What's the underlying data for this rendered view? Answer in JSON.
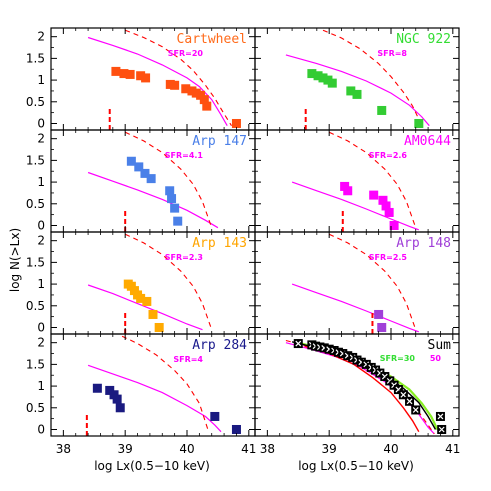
{
  "figure": {
    "ylabel": "log N(>Lx)",
    "xlabel": "log Lx(0.5−10 keV)",
    "x_ticks": [
      "38",
      "39",
      "40",
      "41"
    ],
    "y_ticks": [
      "0",
      "0.5",
      "1",
      "1.5",
      "2"
    ]
  },
  "colors": {
    "model": "#ff00ff",
    "limit": "#ff0000",
    "frame": "#000000",
    "sum_fit_green": "#88ee22",
    "sum_fit_black": "#000000"
  },
  "chart_data": [
    {
      "type": "scatter",
      "title": "Cartwheel",
      "sfr_label": "SFR=20",
      "title_color": "#ff6a1a",
      "sfr_color": "#ff00ff",
      "marker_color": "#ff5010",
      "xlim": [
        37.8,
        41.1
      ],
      "ylim": [
        -0.15,
        2.2
      ],
      "x": [
        38.85,
        38.98,
        39.08,
        39.25,
        39.33,
        39.73,
        39.8,
        39.98,
        40.08,
        40.15,
        40.22,
        40.28,
        40.32,
        40.8
      ],
      "y": [
        1.2,
        1.15,
        1.13,
        1.1,
        1.05,
        0.9,
        0.88,
        0.8,
        0.75,
        0.7,
        0.65,
        0.55,
        0.4,
        0.0
      ],
      "completeness_limit": 38.75,
      "model_curve": {
        "x": [
          38.4,
          38.8,
          39.2,
          39.6,
          40.0,
          40.2,
          40.4,
          40.55,
          40.65
        ],
        "y": [
          1.98,
          1.8,
          1.6,
          1.35,
          1.05,
          0.85,
          0.55,
          0.2,
          -0.05
        ]
      },
      "upper_curve": {
        "x": [
          39.0,
          39.3,
          39.6,
          39.9,
          40.1,
          40.3,
          40.45,
          40.6,
          40.72
        ],
        "y": [
          2.15,
          1.98,
          1.77,
          1.48,
          1.22,
          0.88,
          0.58,
          0.22,
          -0.05
        ]
      }
    },
    {
      "type": "scatter",
      "title": "NGC 922",
      "sfr_label": "SFR=8",
      "title_color": "#33dd33",
      "sfr_color": "#ff00ff",
      "marker_color": "#33cc33",
      "xlim": [
        37.8,
        41.1
      ],
      "ylim": [
        -0.15,
        2.2
      ],
      "x": [
        38.72,
        38.82,
        38.9,
        38.98,
        39.05,
        39.35,
        39.45,
        39.85,
        40.45
      ],
      "y": [
        1.15,
        1.1,
        1.05,
        1.0,
        0.93,
        0.75,
        0.67,
        0.3,
        0.0
      ],
      "completeness_limit": 38.62,
      "model_curve": {
        "x": [
          38.3,
          38.8,
          39.2,
          39.6,
          40.0,
          40.3,
          40.5,
          40.62
        ],
        "y": [
          1.58,
          1.38,
          1.2,
          0.98,
          0.7,
          0.42,
          0.15,
          -0.05
        ]
      },
      "upper_curve": {
        "x": [
          38.9,
          39.2,
          39.5,
          39.8,
          40.0,
          40.2,
          40.35,
          40.5
        ],
        "y": [
          2.15,
          1.97,
          1.72,
          1.38,
          1.08,
          0.72,
          0.4,
          -0.05
        ]
      }
    },
    {
      "type": "scatter",
      "title": "Arp 147",
      "sfr_label": "SFR=4.1",
      "title_color": "#4a7fe8",
      "sfr_color": "#ff00ff",
      "marker_color": "#4a80e8",
      "xlim": [
        37.8,
        41.1
      ],
      "ylim": [
        -0.15,
        2.2
      ],
      "x": [
        39.1,
        39.22,
        39.32,
        39.42,
        39.72,
        39.75,
        39.8,
        39.85
      ],
      "y": [
        1.48,
        1.35,
        1.2,
        1.08,
        0.8,
        0.62,
        0.4,
        0.1
      ],
      "completeness_limit": 39.0,
      "model_curve": {
        "x": [
          38.4,
          38.8,
          39.2,
          39.6,
          40.0,
          40.3,
          40.5
        ],
        "y": [
          1.22,
          1.02,
          0.82,
          0.6,
          0.35,
          0.12,
          -0.05
        ]
      },
      "upper_curve": {
        "x": [
          39.0,
          39.3,
          39.6,
          39.9,
          40.1,
          40.25,
          40.4
        ],
        "y": [
          2.15,
          1.95,
          1.68,
          1.3,
          0.95,
          0.55,
          -0.05
        ]
      }
    },
    {
      "type": "scatter",
      "title": "AM0644",
      "sfr_label": "SFR=2.6",
      "title_color": "#ff00ff",
      "sfr_color": "#ff00ff",
      "marker_color": "#ff00ff",
      "xlim": [
        37.8,
        41.1
      ],
      "ylim": [
        -0.15,
        2.2
      ],
      "x": [
        39.25,
        39.3,
        39.72,
        39.87,
        39.92,
        39.97,
        40.05
      ],
      "y": [
        0.9,
        0.8,
        0.7,
        0.58,
        0.45,
        0.3,
        0.0
      ],
      "completeness_limit": 39.22,
      "model_curve": {
        "x": [
          38.4,
          38.8,
          39.2,
          39.6,
          40.0,
          40.3,
          40.45
        ],
        "y": [
          1.0,
          0.8,
          0.6,
          0.38,
          0.15,
          -0.02,
          -0.1
        ]
      },
      "upper_curve": {
        "x": [
          39.0,
          39.3,
          39.6,
          39.9,
          40.1,
          40.25,
          40.4
        ],
        "y": [
          2.15,
          1.95,
          1.68,
          1.3,
          0.95,
          0.55,
          -0.05
        ]
      }
    },
    {
      "type": "scatter",
      "title": "Arp 143",
      "sfr_label": "SFR=2.3",
      "title_color": "#ffa500",
      "sfr_color": "#ff00ff",
      "marker_color": "#ffaa00",
      "xlim": [
        37.8,
        41.1
      ],
      "ylim": [
        -0.15,
        2.2
      ],
      "x": [
        39.05,
        39.1,
        39.15,
        39.2,
        39.25,
        39.35,
        39.45,
        39.55
      ],
      "y": [
        1.0,
        0.95,
        0.85,
        0.75,
        0.67,
        0.6,
        0.3,
        0.0
      ],
      "completeness_limit": 39.0,
      "model_curve": {
        "x": [
          38.4,
          38.8,
          39.2,
          39.6,
          40.0,
          40.25
        ],
        "y": [
          0.98,
          0.78,
          0.55,
          0.32,
          0.08,
          -0.05
        ]
      },
      "upper_curve": {
        "x": [
          39.0,
          39.3,
          39.6,
          39.9,
          40.1,
          40.25,
          40.4
        ],
        "y": [
          2.15,
          1.95,
          1.68,
          1.3,
          0.95,
          0.55,
          -0.05
        ]
      }
    },
    {
      "type": "scatter",
      "title": "Arp 148",
      "sfr_label": "SFR=2.5",
      "title_color": "#a040d8",
      "sfr_color": "#ff00ff",
      "marker_color": "#a040d8",
      "xlim": [
        37.8,
        41.1
      ],
      "ylim": [
        -0.15,
        2.2
      ],
      "x": [
        39.8,
        39.85
      ],
      "y": [
        0.3,
        0.0
      ],
      "completeness_limit": 39.7,
      "model_curve": {
        "x": [
          38.4,
          38.8,
          39.2,
          39.6,
          40.0,
          40.3,
          40.45
        ],
        "y": [
          1.0,
          0.8,
          0.6,
          0.38,
          0.15,
          -0.02,
          -0.1
        ]
      },
      "upper_curve": {
        "x": [
          39.0,
          39.3,
          39.6,
          39.9,
          40.1,
          40.25,
          40.4
        ],
        "y": [
          2.15,
          1.95,
          1.68,
          1.3,
          0.95,
          0.55,
          -0.05
        ]
      }
    },
    {
      "type": "scatter",
      "title": "Arp 284",
      "sfr_label": "SFR=4",
      "title_color": "#1a1a8c",
      "sfr_color": "#ff00ff",
      "marker_color": "#1a1a80",
      "xlim": [
        37.8,
        41.1
      ],
      "ylim": [
        -0.15,
        2.2
      ],
      "x": [
        38.55,
        38.75,
        38.82,
        38.87,
        38.92,
        40.45,
        40.8
      ],
      "y": [
        0.95,
        0.9,
        0.8,
        0.7,
        0.5,
        0.3,
        0.0
      ],
      "completeness_limit": 38.38,
      "model_curve": {
        "x": [
          38.4,
          38.8,
          39.2,
          39.6,
          40.0,
          40.3,
          40.45,
          40.55
        ],
        "y": [
          1.48,
          1.28,
          1.08,
          0.85,
          0.55,
          0.3,
          0.1,
          -0.05
        ]
      },
      "upper_curve": {
        "x": [
          38.95,
          39.2,
          39.5,
          39.8,
          40.0,
          40.2,
          40.35
        ],
        "y": [
          2.15,
          1.98,
          1.72,
          1.36,
          1.05,
          0.6,
          -0.05
        ]
      }
    },
    {
      "type": "scatter",
      "title": "Sum",
      "sfr_label": "SFR=30",
      "sfr_label_2": "50",
      "title_color": "#000000",
      "sfr_color": "#33dd33",
      "sfr_color_2": "#ff00ff",
      "marker_color": "#000000",
      "xlim": [
        37.8,
        41.1
      ],
      "ylim": [
        -0.15,
        2.2
      ],
      "x": [
        38.5,
        38.72,
        38.78,
        38.85,
        38.92,
        39.0,
        39.08,
        39.15,
        39.22,
        39.3,
        39.38,
        39.45,
        39.52,
        39.6,
        39.68,
        39.75,
        39.82,
        39.9,
        39.98,
        40.05,
        40.12,
        40.2,
        40.3,
        40.4,
        40.8,
        40.82
      ],
      "y": [
        1.98,
        1.95,
        1.92,
        1.9,
        1.88,
        1.85,
        1.82,
        1.78,
        1.75,
        1.7,
        1.66,
        1.6,
        1.55,
        1.5,
        1.43,
        1.37,
        1.3,
        1.22,
        1.12,
        1.02,
        0.92,
        0.8,
        0.65,
        0.45,
        0.3,
        0.0
      ],
      "model_curve": {
        "x": [
          38.3,
          38.7,
          39.1,
          39.5,
          39.9,
          40.2,
          40.45,
          40.6,
          40.7
        ],
        "y": [
          2.0,
          1.85,
          1.68,
          1.45,
          1.1,
          0.75,
          0.35,
          0.05,
          -0.1
        ]
      },
      "upper_curve": {
        "x": [
          38.3,
          38.7,
          39.1,
          39.5,
          39.9,
          40.2,
          40.45,
          40.6,
          40.7
        ],
        "y": [
          2.05,
          1.9,
          1.73,
          1.5,
          1.15,
          0.8,
          0.4,
          0.1,
          -0.1
        ]
      },
      "fit_green": {
        "x": [
          38.5,
          38.9,
          39.3,
          39.7,
          40.0,
          40.3,
          40.5,
          40.65,
          40.75
        ],
        "y": [
          2.0,
          1.85,
          1.68,
          1.45,
          1.22,
          0.92,
          0.6,
          0.3,
          0.0
        ]
      },
      "fit_black": {
        "x": [
          38.4,
          38.8,
          39.2,
          39.6,
          39.9,
          40.2,
          40.45,
          40.6,
          40.72
        ],
        "y": [
          2.02,
          1.88,
          1.7,
          1.48,
          1.25,
          0.95,
          0.62,
          0.3,
          0.0
        ]
      },
      "fit_red_lower": {
        "x": [
          38.6,
          39.0,
          39.4,
          39.7,
          40.0,
          40.2,
          40.35,
          40.45
        ],
        "y": [
          1.92,
          1.75,
          1.5,
          1.2,
          0.85,
          0.5,
          0.2,
          -0.05
        ]
      }
    }
  ]
}
